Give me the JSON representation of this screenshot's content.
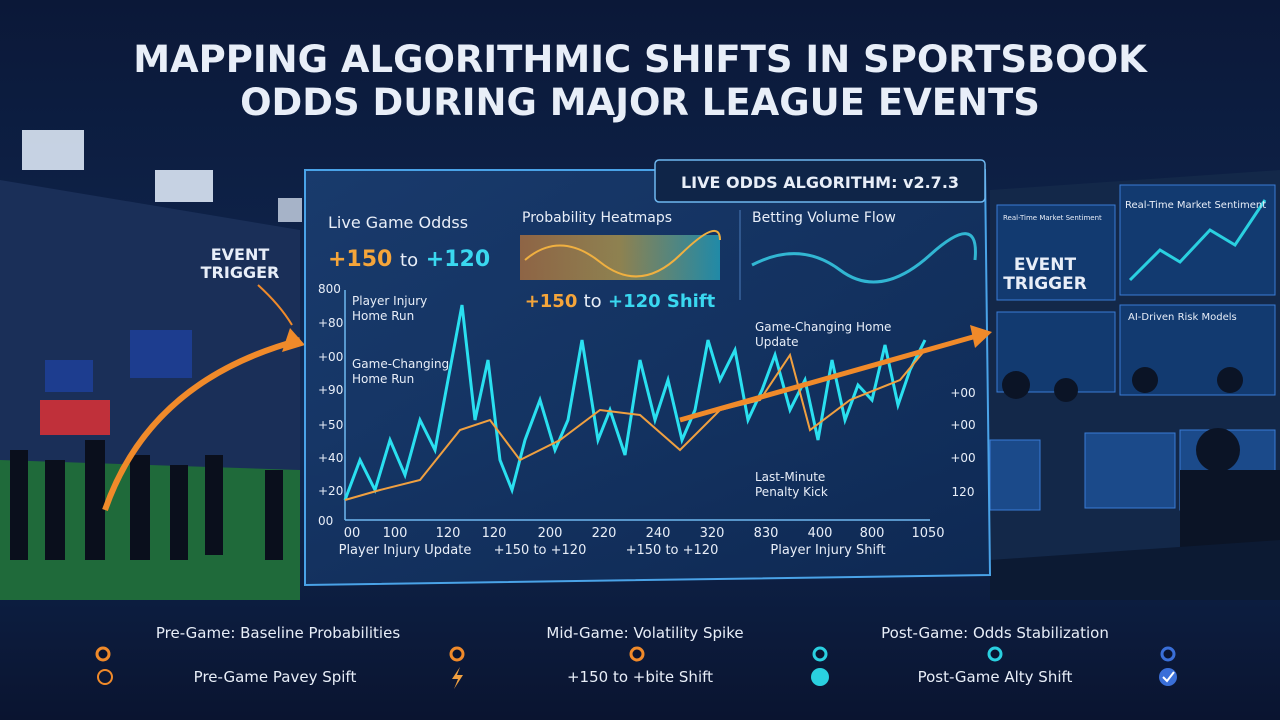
{
  "header": {
    "title_lines": [
      "MAPPING ALGORITHMIC SHIFTS IN SPORTSBOOK",
      "ODDS DURING MAJOR LEAGUE EVENTS"
    ]
  },
  "left_panel": {
    "label_lines": [
      "EVENT",
      "TRIGGER"
    ]
  },
  "main_panel": {
    "badge": "LIVE ODDS ALGORITHM: v2.7.3",
    "live_odds": {
      "title": "Live Game Oddss",
      "from": "+150",
      "sep": "to",
      "to": "+120"
    },
    "heatmap": {
      "title": "Probability Heatmaps",
      "from": "+150",
      "sep": "to",
      "to": "+120 Shift"
    },
    "volume": {
      "title": "Betting Volume Flow"
    },
    "y_labels": [
      "800",
      "+80",
      "+00",
      "+90",
      "+50",
      "+40",
      "+20",
      "00"
    ],
    "x_labels": [
      "00",
      "100",
      "120",
      "120",
      "200",
      "220",
      "240",
      "320",
      "830",
      "400",
      "800",
      "1050"
    ],
    "annotations": [
      [
        "Player Injury",
        "Home Run"
      ],
      [
        "Game-Changing",
        "Home Run"
      ],
      [
        "Game-Changing Home",
        "Update"
      ],
      [
        "Last-Minute",
        "Penalty Kick"
      ]
    ],
    "x_captions": [
      "Player Injury Update",
      "+150 to +120",
      "+150 to +120",
      "Player Injury Shift"
    ],
    "right_labels": [
      "+00",
      "+00",
      "+00",
      "120"
    ]
  },
  "right_panel": {
    "label_lines": [
      "EVENT",
      "TRIGGER"
    ],
    "screens": [
      "Real-Time Market Sentiment",
      "Real-Time Market Sentiment",
      "AI-Driven Risk Models"
    ]
  },
  "timeline": {
    "phases": [
      "Pre-Game: Baseline Probabilities",
      "Mid-Game: Volatility Spike",
      "Post-Game: Odds Stabilization"
    ],
    "captions": [
      "Pre-Game Pavey Spift",
      "+150 to +bite Shift",
      "Post-Game Alty Shift"
    ]
  }
}
